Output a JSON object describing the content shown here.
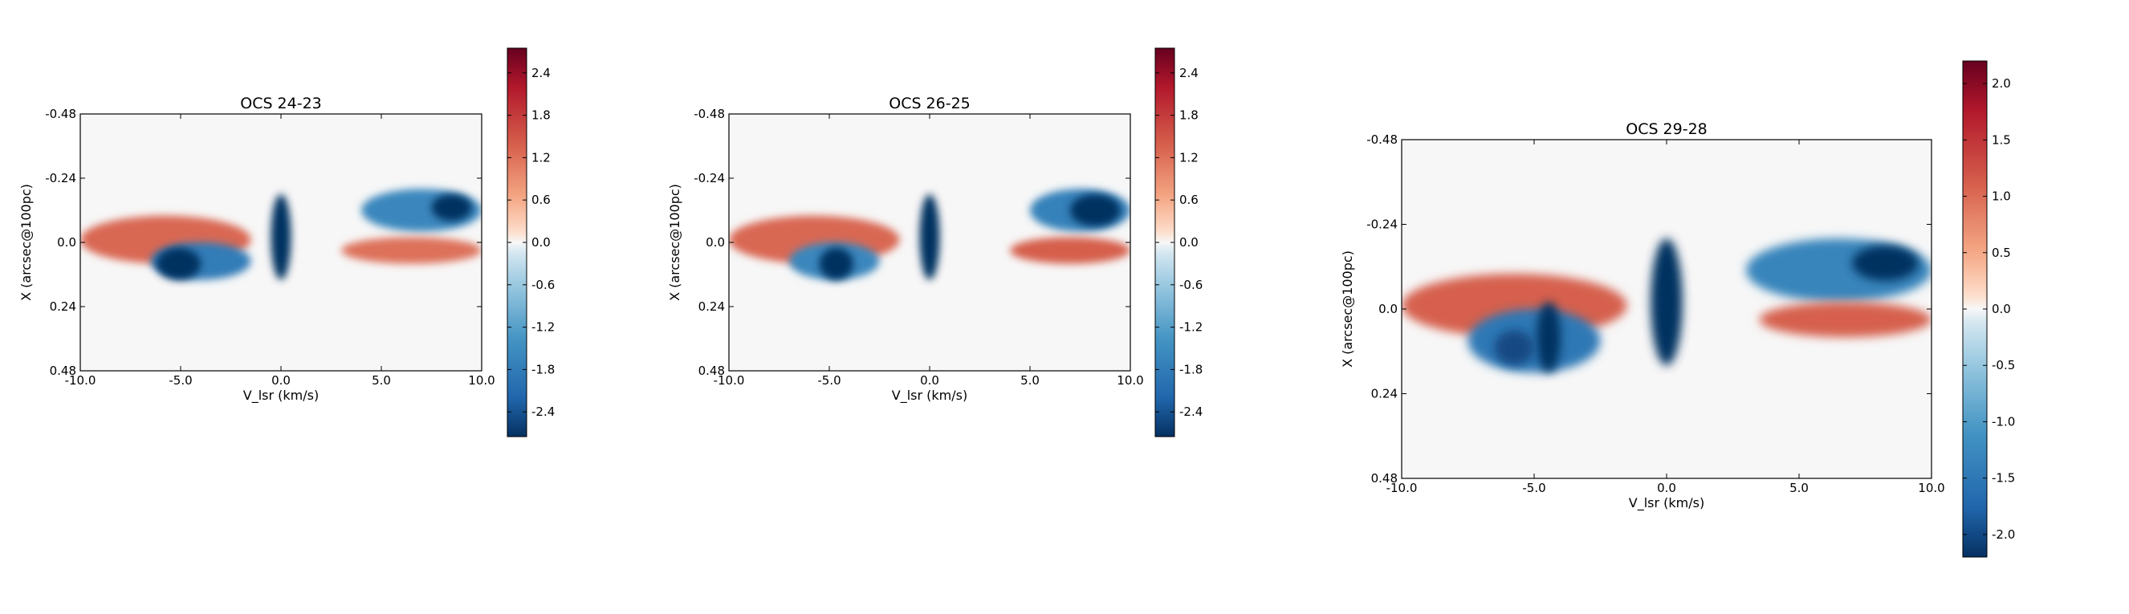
{
  "chart_data": [
    {
      "type": "heatmap",
      "title": "OCS 24-23",
      "xlabel": "V_lsr (km/s)",
      "ylabel": "X (arcsec@100pc)",
      "xlim": [
        -10.0,
        10.0
      ],
      "ylim": [
        -0.48,
        0.48
      ],
      "xticks": [
        "-10.0",
        "-5.0",
        "0.0",
        "5.0",
        "10.0"
      ],
      "yticks": [
        "-0.48",
        "-0.24",
        "0.0",
        "0.24",
        "0.48"
      ],
      "colorbar": {
        "range": [
          -2.75,
          2.75
        ],
        "ticks": [
          "-2.4",
          "-1.8",
          "-1.2",
          "-0.6",
          "0.0",
          "0.6",
          "1.2",
          "1.8",
          "2.4"
        ],
        "colormap": "diverging red-blue"
      },
      "features": [
        {
          "kind": "positive",
          "x": [
            -10.0,
            -1.5
          ],
          "y": [
            -0.1,
            0.08
          ],
          "amplitude": 1.3
        },
        {
          "kind": "negative",
          "x": [
            -6.5,
            -1.5
          ],
          "y": [
            0.0,
            0.14
          ],
          "amplitude": -1.8
        },
        {
          "kind": "negative",
          "x": [
            -6.2,
            -4.0
          ],
          "y": [
            0.02,
            0.14
          ],
          "amplitude": -2.75
        },
        {
          "kind": "negative",
          "x": [
            -0.5,
            0.5
          ],
          "y": [
            -0.18,
            0.14
          ],
          "amplitude": -2.75
        },
        {
          "kind": "negative",
          "x": [
            4.0,
            10.0
          ],
          "y": [
            -0.2,
            -0.04
          ],
          "amplitude": -1.6
        },
        {
          "kind": "negative",
          "x": [
            7.5,
            9.5
          ],
          "y": [
            -0.18,
            -0.08
          ],
          "amplitude": -2.75
        },
        {
          "kind": "positive",
          "x": [
            3.0,
            10.0
          ],
          "y": [
            -0.02,
            0.08
          ],
          "amplitude": 1.2
        }
      ]
    },
    {
      "type": "heatmap",
      "title": "OCS 26-25",
      "xlabel": "V_lsr (km/s)",
      "ylabel": "X (arcsec@100pc)",
      "xlim": [
        -10.0,
        10.0
      ],
      "ylim": [
        -0.48,
        0.48
      ],
      "xticks": [
        "-10.0",
        "-5.0",
        "0.0",
        "5.0",
        "10.0"
      ],
      "yticks": [
        "-0.48",
        "-0.24",
        "0.0",
        "0.24",
        "0.48"
      ],
      "colorbar": {
        "range": [
          -2.75,
          2.75
        ],
        "ticks": [
          "-2.4",
          "-1.8",
          "-1.2",
          "-0.6",
          "0.0",
          "0.6",
          "1.2",
          "1.8",
          "2.4"
        ],
        "colormap": "diverging red-blue"
      },
      "features": [
        {
          "kind": "positive",
          "x": [
            -10.0,
            -1.5
          ],
          "y": [
            -0.1,
            0.08
          ],
          "amplitude": 1.3
        },
        {
          "kind": "negative",
          "x": [
            -7.0,
            -2.5
          ],
          "y": [
            0.0,
            0.14
          ],
          "amplitude": -1.6
        },
        {
          "kind": "negative",
          "x": [
            -5.5,
            -3.8
          ],
          "y": [
            0.02,
            0.14
          ],
          "amplitude": -2.75
        },
        {
          "kind": "negative",
          "x": [
            -0.5,
            0.5
          ],
          "y": [
            -0.18,
            0.14
          ],
          "amplitude": -2.75
        },
        {
          "kind": "negative",
          "x": [
            5.0,
            10.0
          ],
          "y": [
            -0.2,
            -0.04
          ],
          "amplitude": -1.7
        },
        {
          "kind": "negative",
          "x": [
            7.0,
            9.5
          ],
          "y": [
            -0.18,
            -0.06
          ],
          "amplitude": -2.75
        },
        {
          "kind": "positive",
          "x": [
            4.0,
            10.0
          ],
          "y": [
            -0.02,
            0.08
          ],
          "amplitude": 1.4
        }
      ]
    },
    {
      "type": "heatmap",
      "title": "OCS 29-28",
      "xlabel": "V_lsr (km/s)",
      "ylabel": "X (arcsec@100pc)",
      "xlim": [
        -10.0,
        10.0
      ],
      "ylim": [
        -0.48,
        0.48
      ],
      "xticks": [
        "-10.0",
        "-5.0",
        "0.0",
        "5.0",
        "10.0"
      ],
      "yticks": [
        "-0.48",
        "-0.24",
        "0.0",
        "0.24",
        "0.48"
      ],
      "colorbar": {
        "range": [
          -2.2,
          2.2
        ],
        "ticks": [
          "-2.0",
          "-1.5",
          "-1.0",
          "-0.5",
          "0.0",
          "0.5",
          "1.0",
          "1.5",
          "2.0"
        ],
        "colormap": "diverging red-blue"
      },
      "features": [
        {
          "kind": "positive",
          "x": [
            -10.0,
            -1.5
          ],
          "y": [
            -0.1,
            0.08
          ],
          "amplitude": 1.1
        },
        {
          "kind": "negative",
          "x": [
            -7.5,
            -2.5
          ],
          "y": [
            0.0,
            0.18
          ],
          "amplitude": -1.5
        },
        {
          "kind": "negative",
          "x": [
            -4.9,
            -4.0
          ],
          "y": [
            -0.02,
            0.18
          ],
          "amplitude": -2.2
        },
        {
          "kind": "negative",
          "x": [
            -6.5,
            -5.0
          ],
          "y": [
            0.06,
            0.16
          ],
          "amplitude": -2.0
        },
        {
          "kind": "negative",
          "x": [
            -0.6,
            0.6
          ],
          "y": [
            -0.2,
            0.16
          ],
          "amplitude": -2.2
        },
        {
          "kind": "negative",
          "x": [
            3.0,
            10.0
          ],
          "y": [
            -0.2,
            -0.02
          ],
          "amplitude": -1.3
        },
        {
          "kind": "negative",
          "x": [
            7.0,
            9.5
          ],
          "y": [
            -0.18,
            -0.08
          ],
          "amplitude": -2.2
        },
        {
          "kind": "positive",
          "x": [
            3.5,
            10.0
          ],
          "y": [
            -0.02,
            0.08
          ],
          "amplitude": 1.1
        }
      ]
    }
  ]
}
